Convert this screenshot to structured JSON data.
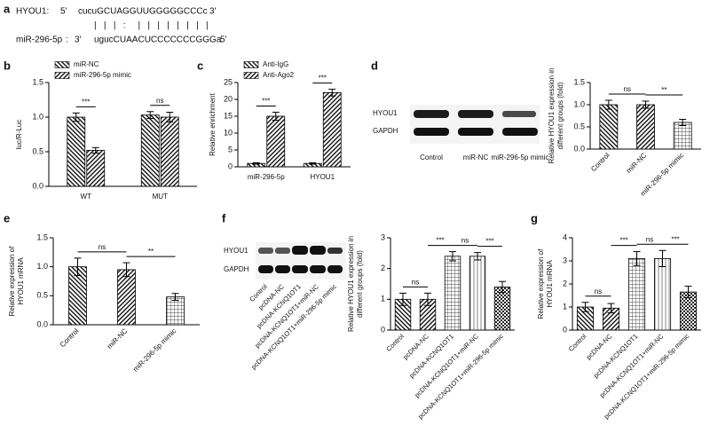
{
  "sequence": {
    "panel": "a",
    "rows": [
      [
        "HYOU1:",
        "5'",
        "cucuGCUAGGUUGGGGGCCCc",
        "3'"
      ],
      [
        "miR-296-5p",
        ":",
        "3'",
        "ugucCUAACUCCCCCCCGGGa",
        "5'"
      ]
    ],
    "pairing": "|   |   |   :     |   |   |   |   |   |   |   |"
  },
  "chart_data": [
    {
      "type": "bar",
      "panel": "b",
      "ylabel": [
        "luc/R-Luc"
      ],
      "categories": [
        "WT",
        "MUT"
      ],
      "series": [
        {
          "name": "miR-NC",
          "pattern": "diag-l",
          "values": [
            1.0,
            1.03
          ],
          "errors": [
            0.06,
            0.05
          ]
        },
        {
          "name": "miR-296-5p mimic",
          "pattern": "diag-r",
          "values": [
            0.52,
            1.0
          ],
          "errors": [
            0.04,
            0.07
          ]
        }
      ],
      "ylim": [
        0,
        1.5
      ],
      "yticks": [
        {
          "value": 0,
          "label": "0.0"
        },
        0.5,
        {
          "value": 1,
          "label": "1.0"
        },
        1.5
      ],
      "annotations": [
        "***",
        "ns"
      ],
      "legend": "top-left"
    },
    {
      "type": "bar",
      "panel": "c",
      "ylabel": [
        "Relative enrichment"
      ],
      "categories": [
        "miR-296-5p",
        "HYOU1"
      ],
      "series": [
        {
          "name": "Anti-IgG",
          "pattern": "diag-l",
          "values": [
            1.0,
            1.0
          ],
          "errors": [
            0.2,
            0.2
          ]
        },
        {
          "name": "Anti-Ago2",
          "pattern": "diag-r",
          "values": [
            15,
            22
          ],
          "errors": [
            1.2,
            1.0
          ]
        }
      ],
      "ylim": [
        0,
        25
      ],
      "yticks": [
        0,
        5,
        10,
        15,
        20,
        25
      ],
      "annotations": [
        "***",
        "***"
      ],
      "legend": "top-left"
    },
    {
      "type": "bar",
      "panel": "d",
      "ylabel": [
        "Relative HYOU1 expression in",
        "different groups (fold)"
      ],
      "categories": [
        "Control",
        "miR-NC",
        "miR-296-5p mimic"
      ],
      "series": [
        {
          "patterns": [
            "diag-l",
            "diag-r",
            "grid"
          ],
          "values": [
            1.0,
            1.0,
            0.6
          ],
          "errors": [
            0.1,
            0.08,
            0.07
          ]
        }
      ],
      "ylim": [
        0,
        1.5
      ],
      "yticks": [
        {
          "value": 0,
          "label": "0.0"
        },
        0.5,
        {
          "value": 1,
          "label": "1.0"
        },
        1.5
      ],
      "annotations": [
        "ns",
        "**"
      ],
      "blot": {
        "rows": [
          "HYOU1",
          "GAPDH"
        ],
        "lanes": [
          "Control",
          "miR-NC",
          "miR-296-5p mimic"
        ]
      }
    },
    {
      "type": "bar",
      "panel": "e",
      "ylabel": [
        "Relative expression of",
        "HYOU1 mRNA"
      ],
      "categories": [
        "Control",
        "miR-NC",
        "miR-296-5p mimic"
      ],
      "series": [
        {
          "patterns": [
            "diag-l",
            "diag-r",
            "grid"
          ],
          "values": [
            1.0,
            0.95,
            0.48
          ],
          "errors": [
            0.15,
            0.12,
            0.06
          ]
        }
      ],
      "ylim": [
        0,
        1.5
      ],
      "yticks": [
        {
          "value": 0,
          "label": "0.0"
        },
        0.5,
        {
          "value": 1,
          "label": "1.0"
        },
        1.5
      ],
      "annotations": [
        "ns",
        "**"
      ]
    },
    {
      "type": "bar",
      "panel": "f",
      "ylabel": [
        "Relative HYOU1 expression in",
        "different groups (fold)"
      ],
      "categories": [
        "Control",
        "pcDNA-NC",
        "pcDNA-KCNQ1OT1",
        "pcDNA-KCNQ1OT1+miR-NC",
        "pcDNA-KCNQ1OT1+miR-296-5p mimic"
      ],
      "series": [
        {
          "patterns": [
            "diag-l",
            "diag-r",
            "grid",
            "vertical",
            "checker"
          ],
          "values": [
            1.0,
            1.0,
            2.4,
            2.4,
            1.4
          ],
          "errors": [
            0.2,
            0.2,
            0.15,
            0.12,
            0.18
          ]
        }
      ],
      "ylim": [
        0,
        3
      ],
      "yticks": [
        0,
        1,
        2,
        3
      ],
      "annotations": [
        "ns",
        "***",
        "ns",
        "***"
      ],
      "blot": {
        "rows": [
          "HYOU1",
          "GAPDH"
        ],
        "lanes": [
          "Control",
          "pcDNA-NC",
          "pcDNA-KCNQ1OT1",
          "pcDNA-KCNQ1OT1+miR-NC",
          "pcDNA-KCNQ1OT1+miR-296-5p mimic"
        ]
      }
    },
    {
      "type": "bar",
      "panel": "g",
      "ylabel": [
        "Relative expression of",
        "HYOU1 mRNA"
      ],
      "categories": [
        "Control",
        "pcDNA-NC",
        "pcDNA-KCNQ1OT1",
        "pcDNA-KCNQ1OT1+miR-NC",
        "pcDNA-KCNQ1OT1+miR-296-5p mimic"
      ],
      "series": [
        {
          "patterns": [
            "diag-l",
            "diag-r",
            "grid",
            "vertical",
            "checker"
          ],
          "values": [
            1.0,
            0.95,
            3.1,
            3.1,
            1.65
          ],
          "errors": [
            0.2,
            0.2,
            0.3,
            0.35,
            0.25
          ]
        }
      ],
      "ylim": [
        0,
        4
      ],
      "yticks": [
        0,
        1,
        2,
        3,
        4
      ],
      "annotations": [
        "ns",
        "***",
        "ns",
        "***"
      ]
    }
  ]
}
